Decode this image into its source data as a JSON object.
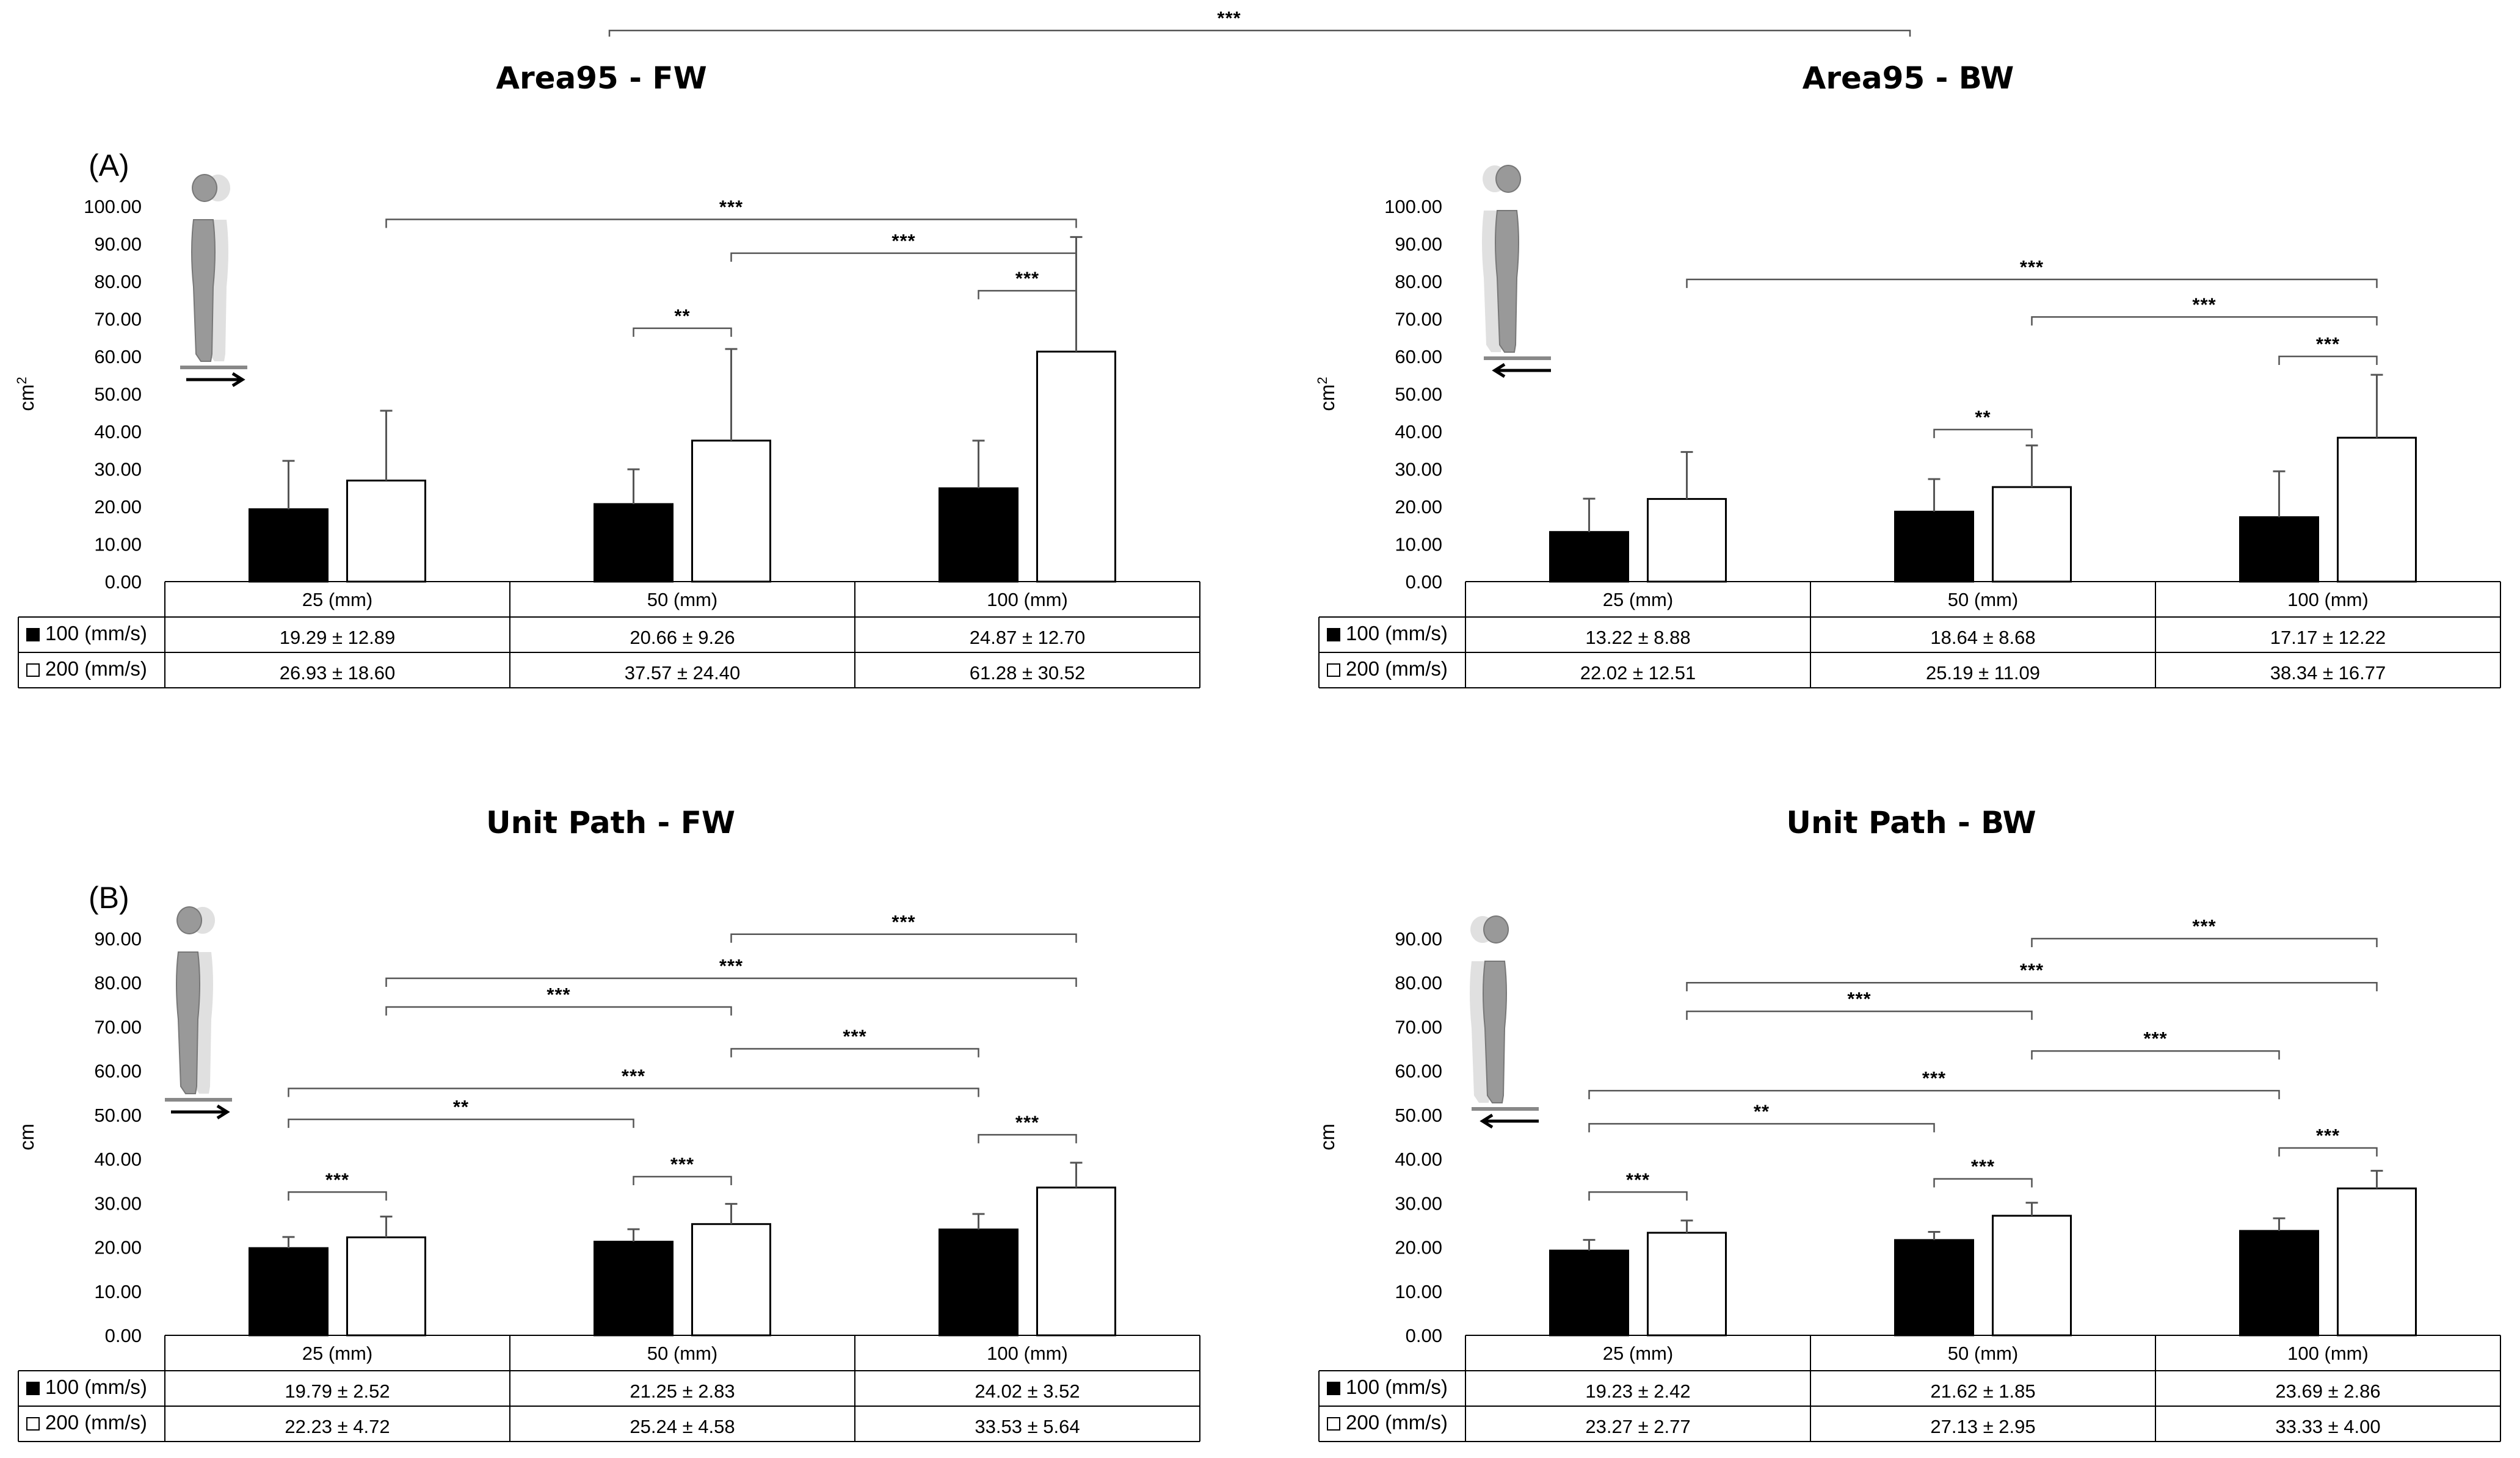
{
  "figure": {
    "top_significance": "***",
    "panel_labels": [
      "(A)",
      "(B)"
    ],
    "colors": {
      "series100": "#000000",
      "series200": "#ffffff",
      "bracket": "#555555",
      "figure": "#999999"
    },
    "icons": [
      "standing-figure-forward-arrow-icon",
      "standing-figure-backward-arrow-icon"
    ]
  },
  "chart_data": [
    {
      "type": "bar",
      "title": "Area95  - FW",
      "ylabel": "cm²",
      "ylabel_base": "cm",
      "ylabel_sup": "2",
      "ylim": [
        0,
        100
      ],
      "yticks": [
        "0.00",
        "10.00",
        "20.00",
        "30.00",
        "40.00",
        "50.00",
        "60.00",
        "70.00",
        "80.00",
        "90.00",
        "100.00"
      ],
      "categories": [
        "25 (mm)",
        "50 (mm)",
        "100 (mm)"
      ],
      "direction": "forward",
      "series": [
        {
          "name": "100 (mm/s)",
          "values": [
            19.29,
            20.66,
            24.87
          ],
          "sd": [
            12.89,
            9.26,
            12.7
          ],
          "cells": [
            "19.29 ± 12.89",
            "20.66 ± 9.26",
            "24.87 ± 12.70"
          ]
        },
        {
          "name": "200 (mm/s)",
          "values": [
            26.93,
            37.57,
            61.28
          ],
          "sd": [
            18.6,
            24.4,
            30.52
          ],
          "cells": [
            "26.93 ± 18.60",
            "37.57 ± 24.40",
            "61.28 ± 30.52"
          ]
        }
      ],
      "significance": [
        {
          "from": [
            0,
            1
          ],
          "to": [
            2,
            1
          ],
          "level": 96.5,
          "label": "***"
        },
        {
          "from": [
            1,
            1
          ],
          "to": [
            2,
            1
          ],
          "level": 87.5,
          "label": "***"
        },
        {
          "from": [
            2,
            0
          ],
          "to": [
            2,
            1
          ],
          "level": 77.5,
          "label": "***"
        },
        {
          "from": [
            1,
            0
          ],
          "to": [
            1,
            1
          ],
          "level": 67.5,
          "label": "**"
        }
      ]
    },
    {
      "type": "bar",
      "title": "Area95  - BW",
      "ylabel": "cm²",
      "ylabel_base": "cm",
      "ylabel_sup": "2",
      "ylim": [
        0,
        100
      ],
      "yticks": [
        "0.00",
        "10.00",
        "20.00",
        "30.00",
        "40.00",
        "50.00",
        "60.00",
        "70.00",
        "80.00",
        "90.00",
        "100.00"
      ],
      "categories": [
        "25 (mm)",
        "50 (mm)",
        "100 (mm)"
      ],
      "direction": "backward",
      "series": [
        {
          "name": "100 (mm/s)",
          "values": [
            13.22,
            18.64,
            17.17
          ],
          "sd": [
            8.88,
            8.68,
            12.22
          ],
          "cells": [
            "13.22 ± 8.88",
            "18.64 ± 8.68",
            "17.17 ± 12.22"
          ]
        },
        {
          "name": "200 (mm/s)",
          "values": [
            22.02,
            25.19,
            38.34
          ],
          "sd": [
            12.51,
            11.09,
            16.77
          ],
          "cells": [
            "22.02 ± 12.51",
            "25.19 ± 11.09",
            "38.34 ± 16.77"
          ]
        }
      ],
      "significance": [
        {
          "from": [
            0,
            1
          ],
          "to": [
            2,
            1
          ],
          "level": 80.5,
          "label": "***"
        },
        {
          "from": [
            1,
            1
          ],
          "to": [
            2,
            1
          ],
          "level": 70.5,
          "label": "***"
        },
        {
          "from": [
            2,
            0
          ],
          "to": [
            2,
            1
          ],
          "level": 60.0,
          "label": "***"
        },
        {
          "from": [
            1,
            0
          ],
          "to": [
            1,
            1
          ],
          "level": 40.5,
          "label": "**"
        }
      ]
    },
    {
      "type": "bar",
      "title": "Unit Path  - FW",
      "ylabel": "cm",
      "ylabel_base": "cm",
      "ylabel_sup": "",
      "ylim": [
        0,
        90
      ],
      "yticks": [
        "0.00",
        "10.00",
        "20.00",
        "30.00",
        "40.00",
        "50.00",
        "60.00",
        "70.00",
        "80.00",
        "90.00"
      ],
      "categories": [
        "25 (mm)",
        "50 (mm)",
        "100 (mm)"
      ],
      "direction": "forward",
      "series": [
        {
          "name": "100 (mm/s)",
          "values": [
            19.79,
            21.25,
            24.02
          ],
          "sd": [
            2.52,
            2.83,
            3.52
          ],
          "cells": [
            "19.79 ± 2.52",
            "21.25 ± 2.83",
            "24.02 ± 3.52"
          ]
        },
        {
          "name": "200 (mm/s)",
          "values": [
            22.23,
            25.24,
            33.53
          ],
          "sd": [
            4.72,
            4.58,
            5.64
          ],
          "cells": [
            "22.23 ± 4.72",
            "25.24 ± 4.58",
            "33.53 ± 5.64"
          ]
        }
      ],
      "significance": [
        {
          "from": [
            1,
            1
          ],
          "to": [
            2,
            1
          ],
          "level": 91.0,
          "label": "***"
        },
        {
          "from": [
            0,
            1
          ],
          "to": [
            2,
            1
          ],
          "level": 81.0,
          "label": "***"
        },
        {
          "from": [
            0,
            1
          ],
          "to": [
            1,
            1
          ],
          "level": 74.5,
          "label": "***"
        },
        {
          "from": [
            1,
            1
          ],
          "to": [
            2,
            0
          ],
          "level": 65.0,
          "label": "***"
        },
        {
          "from": [
            0,
            0
          ],
          "to": [
            2,
            0
          ],
          "level": 56.0,
          "label": "***"
        },
        {
          "from": [
            0,
            0
          ],
          "to": [
            1,
            0
          ],
          "level": 49.0,
          "label": "**"
        },
        {
          "from": [
            2,
            0
          ],
          "to": [
            2,
            1
          ],
          "level": 45.5,
          "label": "***"
        },
        {
          "from": [
            1,
            0
          ],
          "to": [
            1,
            1
          ],
          "level": 36.0,
          "label": "***"
        },
        {
          "from": [
            0,
            0
          ],
          "to": [
            0,
            1
          ],
          "level": 32.5,
          "label": "***"
        }
      ]
    },
    {
      "type": "bar",
      "title": "Unit Path  - BW",
      "ylabel": "cm",
      "ylabel_base": "cm",
      "ylabel_sup": "",
      "ylim": [
        0,
        90
      ],
      "yticks": [
        "0.00",
        "10.00",
        "20.00",
        "30.00",
        "40.00",
        "50.00",
        "60.00",
        "70.00",
        "80.00",
        "90.00"
      ],
      "categories": [
        "25 (mm)",
        "50 (mm)",
        "100 (mm)"
      ],
      "direction": "backward",
      "series": [
        {
          "name": "100 (mm/s)",
          "values": [
            19.23,
            21.62,
            23.69
          ],
          "sd": [
            2.42,
            1.85,
            2.86
          ],
          "cells": [
            "19.23 ± 2.42",
            "21.62 ± 1.85",
            "23.69 ± 2.86"
          ]
        },
        {
          "name": "200 (mm/s)",
          "values": [
            23.27,
            27.13,
            33.33
          ],
          "sd": [
            2.77,
            2.95,
            4.0
          ],
          "cells": [
            "23.27 ± 2.77",
            "27.13 ± 2.95",
            "33.33 ± 4.00"
          ]
        }
      ],
      "significance": [
        {
          "from": [
            1,
            1
          ],
          "to": [
            2,
            1
          ],
          "level": 90.0,
          "label": "***"
        },
        {
          "from": [
            0,
            1
          ],
          "to": [
            2,
            1
          ],
          "level": 80.0,
          "label": "***"
        },
        {
          "from": [
            0,
            1
          ],
          "to": [
            1,
            1
          ],
          "level": 73.5,
          "label": "***"
        },
        {
          "from": [
            1,
            1
          ],
          "to": [
            2,
            0
          ],
          "level": 64.5,
          "label": "***"
        },
        {
          "from": [
            0,
            0
          ],
          "to": [
            2,
            0
          ],
          "level": 55.5,
          "label": "***"
        },
        {
          "from": [
            0,
            0
          ],
          "to": [
            1,
            0
          ],
          "level": 48.0,
          "label": "**"
        },
        {
          "from": [
            2,
            0
          ],
          "to": [
            2,
            1
          ],
          "level": 42.5,
          "label": "***"
        },
        {
          "from": [
            1,
            0
          ],
          "to": [
            1,
            1
          ],
          "level": 35.5,
          "label": "***"
        },
        {
          "from": [
            0,
            0
          ],
          "to": [
            0,
            1
          ],
          "level": 32.5,
          "label": "***"
        }
      ]
    }
  ]
}
